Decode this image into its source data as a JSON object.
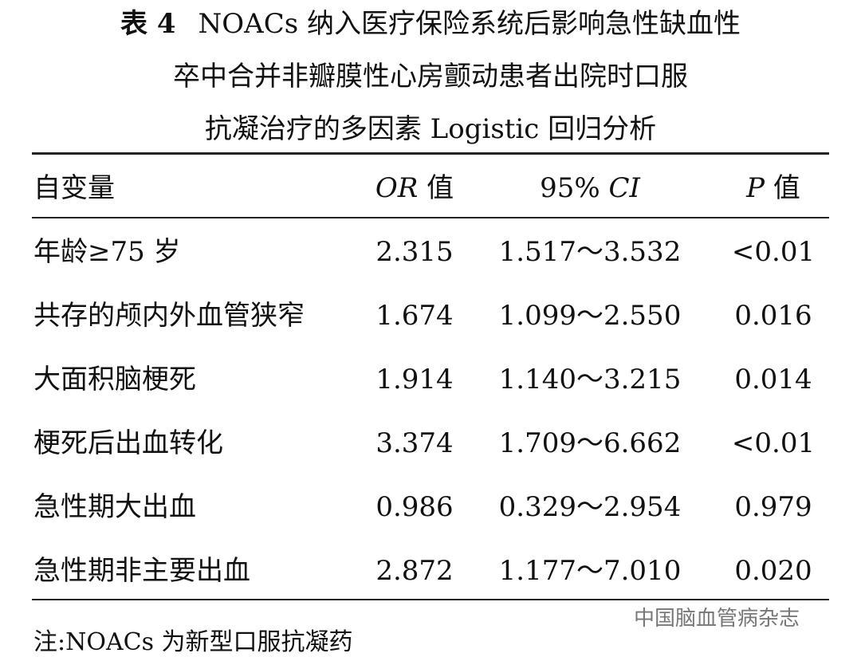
{
  "table": {
    "label": "表 4",
    "title_lines": [
      "NOACs 纳入医疗保险系统后影响急性缺血性",
      "卒中合并非瓣膜性心房颤动患者出院时口服",
      "抗凝治疗的多因素 Logistic 回归分析"
    ],
    "header": [
      [
        {
          "text": "自变量",
          "italic": false
        }
      ],
      [
        {
          "text": "OR",
          "italic": true
        },
        {
          "text": " 值",
          "italic": false
        }
      ],
      [
        {
          "text": "95% ",
          "italic": false
        },
        {
          "text": "CI",
          "italic": true
        }
      ],
      [
        {
          "text": "P",
          "italic": true
        },
        {
          "text": " 值",
          "italic": false
        }
      ]
    ],
    "rows": [
      [
        "年龄≥75 岁",
        "2.315",
        "1.517～3.532",
        "<0.01"
      ],
      [
        "共存的颅内外血管狭窄",
        "1.674",
        "1.099～2.550",
        "0.016"
      ],
      [
        "大面积脑梗死",
        "1.914",
        "1.140～3.215",
        "0.014"
      ],
      [
        "梗死后出血转化",
        "3.374",
        "1.709～6.662",
        "<0.01"
      ],
      [
        "急性期大出血",
        "0.986",
        "0.329～2.954",
        "0.979"
      ],
      [
        "急性期非主要出血",
        "2.872",
        "1.177～7.010",
        "0.020"
      ]
    ],
    "note": "注:NOACs 为新型口服抗凝药"
  },
  "watermark": "中国脑血管病杂志"
}
